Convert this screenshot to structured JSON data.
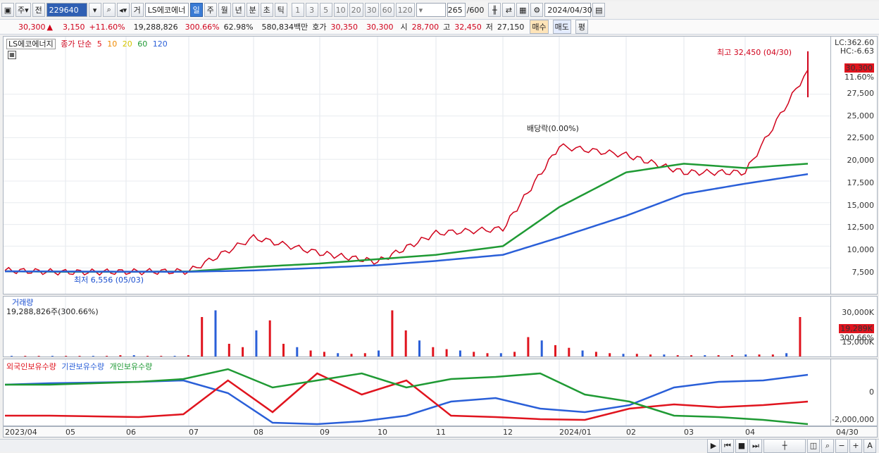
{
  "toolbar1": {
    "market_label": "주",
    "prev_label": "전",
    "code": "229640",
    "name_label": "거",
    "stock_name": "LS에코에너",
    "periods": [
      "일",
      "주",
      "월",
      "년",
      "분",
      "초",
      "틱"
    ],
    "numbers": [
      "1",
      "3",
      "5",
      "10",
      "20",
      "30",
      "60",
      "120"
    ],
    "count": "265",
    "total": "/600",
    "date": "2024/04/30"
  },
  "toolbar2": {
    "price": "30,300",
    "change": "3,150",
    "change_pct": "+11.60%",
    "volume": "19,288,826",
    "vol_ratio": "300.66%",
    "turnover": "62.98%",
    "amount": "580,834백만",
    "quote_label": "호가",
    "quote_ask": "30,350",
    "quote_bid": "30,300",
    "open_label": "시",
    "open": "28,700",
    "high_label": "고",
    "high": "32,450",
    "low_label": "저",
    "low": "27,150",
    "buy_label": "매수",
    "sell_label": "매도",
    "eval_label": "평"
  },
  "price_pane": {
    "legend_name": "LS에코에너지",
    "legend_close": "종가 단순",
    "ma": [
      "5",
      "10",
      "20",
      "60",
      "120"
    ],
    "ma_colors": [
      "#e0141e",
      "#f08a00",
      "#f3e300",
      "#1f9a34",
      "#2a5fd8"
    ],
    "high_annot": "최고 32,450 (04/30)",
    "low_annot": "최저 6,556 (05/03)",
    "dividend_annot": "배당락(0.00%)",
    "lc": "LC:362.60",
    "hc": "HC:-6.63",
    "current_tag": "30,300",
    "current_pct": "11.60%",
    "yticks": [
      "27,500",
      "25,000",
      "22,500",
      "20,000",
      "17,500",
      "15,000",
      "12,500",
      "10,000",
      "7,500"
    ]
  },
  "volume_pane": {
    "title": "거래량",
    "value_line": "19,288,826주(300.66%)",
    "yticks": [
      "30,000K",
      "15,000K"
    ],
    "current_tag": "19,289K",
    "current_pct": "300.66%"
  },
  "holding_pane": {
    "legend": [
      "외국인보유수량",
      "기관보유수량",
      "개인보유수량"
    ],
    "colors": [
      "#e0141e",
      "#2a5fd8",
      "#1f9a34"
    ],
    "yticks": [
      "0",
      "-2,000,000"
    ]
  },
  "xaxis": {
    "labels": [
      "2023/04",
      "05",
      "06",
      "07",
      "08",
      "09",
      "10",
      "11",
      "12",
      "2024/01",
      "02",
      "03",
      "04"
    ],
    "right_label": "04/30"
  },
  "chart_data": {
    "type": "line",
    "title": "LS에코에너지",
    "x": [
      "2023/04",
      "05",
      "06",
      "07",
      "08",
      "09",
      "10",
      "11",
      "12",
      "2024/01",
      "02",
      "03",
      "04",
      "04/30"
    ],
    "series": [
      {
        "name": "종가 단순",
        "values": [
          7200,
          7000,
          7050,
          7100,
          11000,
          9200,
          8200,
          11500,
          12000,
          21500,
          20500,
          18500,
          18500,
          30300
        ]
      },
      {
        "name": "60",
        "values": [
          7100,
          7050,
          7050,
          7080,
          7600,
          8000,
          8500,
          9000,
          10000,
          14500,
          18500,
          19500,
          19000,
          19500
        ]
      },
      {
        "name": "120",
        "values": [
          7100,
          7080,
          7060,
          7050,
          7200,
          7500,
          7800,
          8300,
          9000,
          11000,
          13500,
          16000,
          17200,
          18300
        ]
      }
    ],
    "ylim": [
      5000,
      33000
    ],
    "grid": true,
    "legend": "top-left"
  }
}
